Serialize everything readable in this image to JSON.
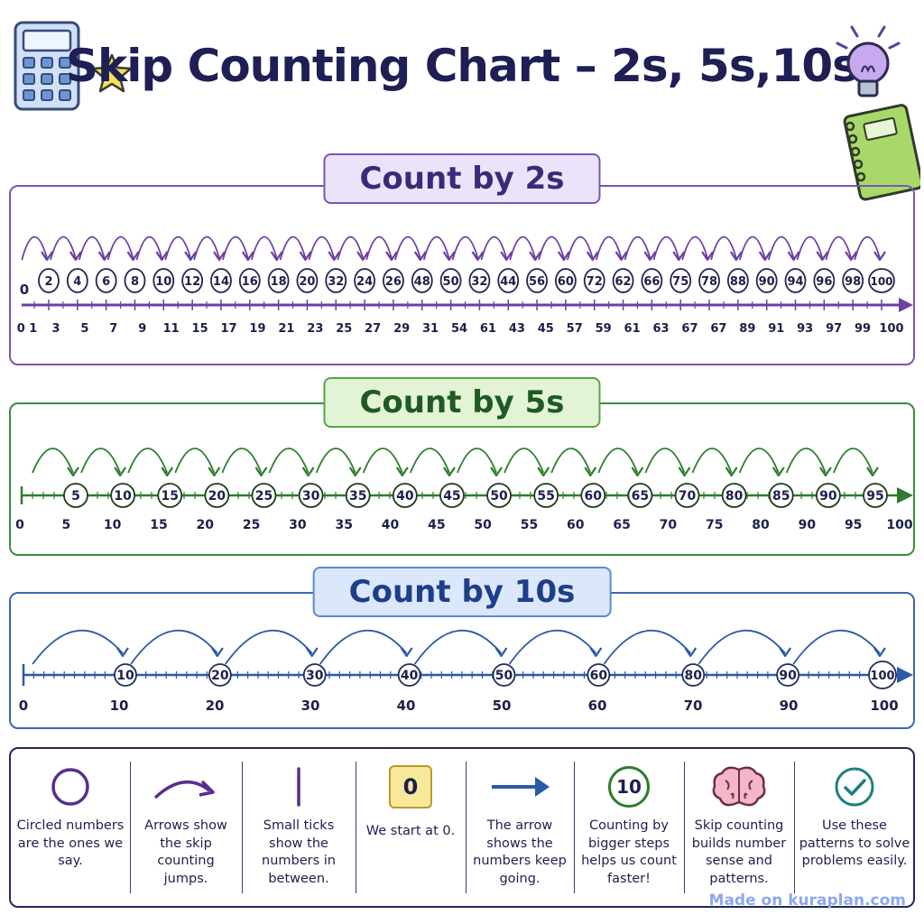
{
  "title": "Skip Counting Chart – 2s, 5s,10s",
  "watermark": "Made on kuraplan.com",
  "icons": [
    "calculator-icon",
    "star-icon",
    "lightbulb-icon",
    "notebook-icon"
  ],
  "colors": {
    "twos": "#6d3fa3",
    "fives": "#2e7d2e",
    "tens": "#2a5aa8",
    "title": "#1d1f55"
  },
  "chart_data": [
    {
      "type": "number-line",
      "title": "Count by 2s",
      "circled": [
        "2",
        "4",
        "6",
        "8",
        "10",
        "12",
        "14",
        "16",
        "18",
        "20",
        "32",
        "24",
        "26",
        "48",
        "50",
        "32",
        "44",
        "56",
        "60",
        "72",
        "62",
        "66",
        "75",
        "78",
        "88",
        "90",
        "94",
        "96",
        "98",
        "100"
      ],
      "start_label": "0",
      "axis_labels": [
        "0 1",
        "3",
        "5",
        "7",
        "9",
        "11",
        "15",
        "17",
        "19",
        "21",
        "23",
        "25",
        "27",
        "29",
        "31",
        "54",
        "61",
        "43",
        "45",
        "57",
        "59",
        "61",
        "63",
        "67",
        "67",
        "89",
        "91",
        "93",
        "97",
        "99",
        "100"
      ]
    },
    {
      "type": "number-line",
      "title": "Count by 5s",
      "circled": [
        "5",
        "10",
        "15",
        "20",
        "25",
        "30",
        "35",
        "40",
        "45",
        "50",
        "55",
        "60",
        "65",
        "70",
        "80",
        "85",
        "90",
        "95"
      ],
      "axis_labels": [
        "0",
        "5",
        "10",
        "15",
        "20",
        "25",
        "30",
        "35",
        "40",
        "45",
        "50",
        "55",
        "60",
        "65",
        "70",
        "75",
        "80",
        "90",
        "95",
        "100"
      ]
    },
    {
      "type": "number-line",
      "title": "Count by 10s",
      "circled": [
        "10",
        "20",
        "30",
        "40",
        "50",
        "60",
        "80",
        "90",
        "100"
      ],
      "axis_labels": [
        "0",
        "10",
        "20",
        "30",
        "40",
        "50",
        "60",
        "70",
        "90",
        "100"
      ]
    }
  ],
  "legend": [
    {
      "icon": "circle-icon",
      "text": "Circled numbers are the ones we say."
    },
    {
      "icon": "curved-arrow-icon",
      "text": "Arrows show the skip counting jumps."
    },
    {
      "icon": "tick-mark-icon",
      "text": "Small ticks show the numbers in between."
    },
    {
      "icon": "zero-box-icon",
      "badge": "0",
      "text": "We start at 0."
    },
    {
      "icon": "right-arrow-icon",
      "text": "The arrow shows the numbers keep going."
    },
    {
      "icon": "ten-circle-icon",
      "badge": "10",
      "text": "Counting by bigger steps helps us count faster!"
    },
    {
      "icon": "brain-icon",
      "text": "Skip counting builds number sense and patterns."
    },
    {
      "icon": "checkmark-icon",
      "text": "Use these patterns to solve problems easily."
    }
  ]
}
